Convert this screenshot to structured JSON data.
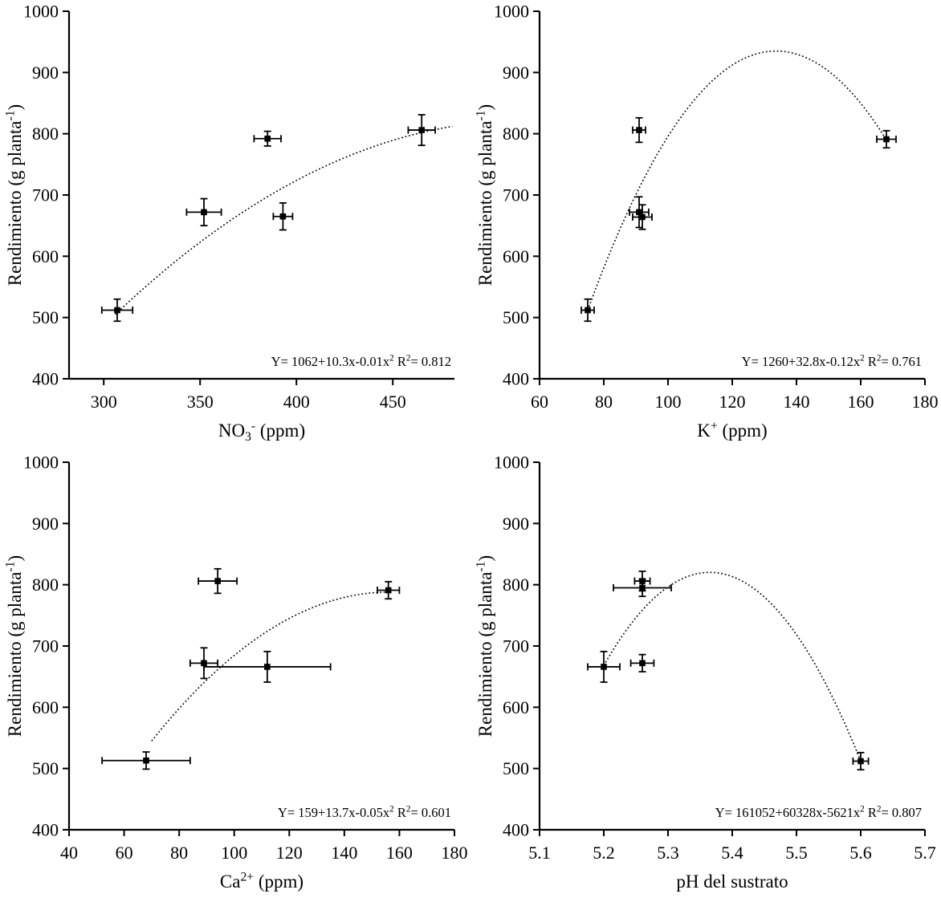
{
  "figure": {
    "background": "#ffffff",
    "ink_color": "#000000",
    "marker": "square",
    "curve_style": "dotted"
  },
  "chart_data": [
    {
      "type": "scatter",
      "title": "",
      "xlabel": "NO_{3}^{-} (ppm)",
      "ylabel": "Rendimiento (g planta^{-1})",
      "xlim": [
        282,
        482
      ],
      "ylim": [
        400,
        1000
      ],
      "xticks": [
        300,
        350,
        400,
        450
      ],
      "yticks": [
        400,
        500,
        600,
        700,
        800,
        900,
        1000
      ],
      "points": [
        {
          "x": 307,
          "y": 512,
          "xerr": 8,
          "yerr": 18
        },
        {
          "x": 352,
          "y": 672,
          "xerr": 9,
          "yerr": 22
        },
        {
          "x": 385,
          "y": 792,
          "xerr": 7,
          "yerr": 12
        },
        {
          "x": 393,
          "y": 665,
          "xerr": 5,
          "yerr": 22
        },
        {
          "x": 465,
          "y": 806,
          "xerr": 7,
          "yerr": 25
        }
      ],
      "curve_points": [
        [
          306,
          505
        ],
        [
          392,
          710
        ],
        [
          481,
          812
        ]
      ],
      "equation": "Y= 1062+10.3x-0.01x^{2} R^{2}= 0.812"
    },
    {
      "type": "scatter",
      "title": "",
      "xlabel": "K^{+} (ppm)",
      "ylabel": "Rendimiento (g planta^{-1})",
      "xlim": [
        60,
        180
      ],
      "ylim": [
        400,
        1000
      ],
      "xticks": [
        60,
        80,
        100,
        120,
        140,
        160,
        180
      ],
      "yticks": [
        400,
        500,
        600,
        700,
        800,
        900,
        1000
      ],
      "points": [
        {
          "x": 75,
          "y": 512,
          "xerr": 2,
          "yerr": 18
        },
        {
          "x": 91,
          "y": 806,
          "xerr": 2,
          "yerr": 20
        },
        {
          "x": 91,
          "y": 672,
          "xerr": 3,
          "yerr": 25
        },
        {
          "x": 92,
          "y": 664,
          "xerr": 3,
          "yerr": 20
        },
        {
          "x": 168,
          "y": 791,
          "xerr": 3,
          "yerr": 14
        }
      ],
      "curve_points": [
        [
          75,
          512
        ],
        [
          134,
          935
        ],
        [
          168,
          790
        ]
      ],
      "equation": "Y= 1260+32.8x-0.12x^{2} R^{2}= 0.761"
    },
    {
      "type": "scatter",
      "title": "",
      "xlabel": "Ca^{2+} (ppm)",
      "ylabel": "Rendimiento (g planta^{-1})",
      "xlim": [
        40,
        180
      ],
      "ylim": [
        400,
        1000
      ],
      "xticks": [
        40,
        60,
        80,
        100,
        120,
        140,
        160,
        180
      ],
      "yticks": [
        400,
        500,
        600,
        700,
        800,
        900,
        1000
      ],
      "points": [
        {
          "x": 68,
          "y": 513,
          "xerr": 16,
          "yerr": 14
        },
        {
          "x": 89,
          "y": 672,
          "xerr": 5,
          "yerr": 25
        },
        {
          "x": 94,
          "y": 806,
          "xerr": 7,
          "yerr": 20
        },
        {
          "x": 112,
          "y": 666,
          "xerr": 23,
          "yerr": 25
        },
        {
          "x": 156,
          "y": 791,
          "xerr": 4,
          "yerr": 14
        }
      ],
      "curve_points": [
        [
          70,
          545
        ],
        [
          120,
          745
        ],
        [
          157,
          788
        ]
      ],
      "equation": "Y= 159+13.7x-0.05x^{2} R^{2}= 0.601"
    },
    {
      "type": "scatter",
      "title": "",
      "xlabel": "pH del sustrato",
      "ylabel": "Rendimiento (g planta^{-1})",
      "xlim": [
        5.1,
        5.7
      ],
      "ylim": [
        400,
        1000
      ],
      "xticks": [
        5.1,
        5.2,
        5.3,
        5.4,
        5.5,
        5.6,
        5.7
      ],
      "yticks": [
        400,
        500,
        600,
        700,
        800,
        900,
        1000
      ],
      "points": [
        {
          "x": 5.2,
          "y": 666,
          "xerr": 0.025,
          "yerr": 25
        },
        {
          "x": 5.26,
          "y": 806,
          "xerr": 0.012,
          "yerr": 16
        },
        {
          "x": 5.26,
          "y": 795,
          "xerr": 0.045,
          "yerr": 14
        },
        {
          "x": 5.26,
          "y": 672,
          "xerr": 0.018,
          "yerr": 14
        },
        {
          "x": 5.6,
          "y": 512,
          "xerr": 0.012,
          "yerr": 14
        }
      ],
      "curve_points": [
        [
          5.2,
          668
        ],
        [
          5.37,
          820
        ],
        [
          5.6,
          512
        ]
      ],
      "equation": "Y= 161052+60328x-5621x^{2} R^{2}= 0.807"
    }
  ]
}
